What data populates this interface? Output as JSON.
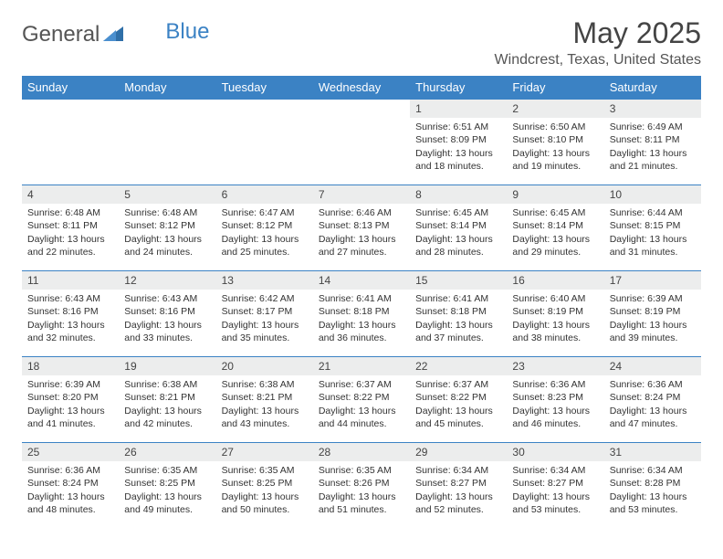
{
  "logo": {
    "text_a": "General",
    "text_b": "Blue"
  },
  "title": "May 2025",
  "location": "Windcrest, Texas, United States",
  "colors": {
    "header_bg": "#3b82c4",
    "header_fg": "#ffffff",
    "daynum_bg": "#eceded",
    "rule": "#3b82c4",
    "text": "#333333"
  },
  "weekday_labels": [
    "Sunday",
    "Monday",
    "Tuesday",
    "Wednesday",
    "Thursday",
    "Friday",
    "Saturday"
  ],
  "first_weekday_index": 4,
  "days": [
    {
      "n": 1,
      "sunrise": "6:51 AM",
      "sunset": "8:09 PM",
      "daylight": "13 hours and 18 minutes."
    },
    {
      "n": 2,
      "sunrise": "6:50 AM",
      "sunset": "8:10 PM",
      "daylight": "13 hours and 19 minutes."
    },
    {
      "n": 3,
      "sunrise": "6:49 AM",
      "sunset": "8:11 PM",
      "daylight": "13 hours and 21 minutes."
    },
    {
      "n": 4,
      "sunrise": "6:48 AM",
      "sunset": "8:11 PM",
      "daylight": "13 hours and 22 minutes."
    },
    {
      "n": 5,
      "sunrise": "6:48 AM",
      "sunset": "8:12 PM",
      "daylight": "13 hours and 24 minutes."
    },
    {
      "n": 6,
      "sunrise": "6:47 AM",
      "sunset": "8:12 PM",
      "daylight": "13 hours and 25 minutes."
    },
    {
      "n": 7,
      "sunrise": "6:46 AM",
      "sunset": "8:13 PM",
      "daylight": "13 hours and 27 minutes."
    },
    {
      "n": 8,
      "sunrise": "6:45 AM",
      "sunset": "8:14 PM",
      "daylight": "13 hours and 28 minutes."
    },
    {
      "n": 9,
      "sunrise": "6:45 AM",
      "sunset": "8:14 PM",
      "daylight": "13 hours and 29 minutes."
    },
    {
      "n": 10,
      "sunrise": "6:44 AM",
      "sunset": "8:15 PM",
      "daylight": "13 hours and 31 minutes."
    },
    {
      "n": 11,
      "sunrise": "6:43 AM",
      "sunset": "8:16 PM",
      "daylight": "13 hours and 32 minutes."
    },
    {
      "n": 12,
      "sunrise": "6:43 AM",
      "sunset": "8:16 PM",
      "daylight": "13 hours and 33 minutes."
    },
    {
      "n": 13,
      "sunrise": "6:42 AM",
      "sunset": "8:17 PM",
      "daylight": "13 hours and 35 minutes."
    },
    {
      "n": 14,
      "sunrise": "6:41 AM",
      "sunset": "8:18 PM",
      "daylight": "13 hours and 36 minutes."
    },
    {
      "n": 15,
      "sunrise": "6:41 AM",
      "sunset": "8:18 PM",
      "daylight": "13 hours and 37 minutes."
    },
    {
      "n": 16,
      "sunrise": "6:40 AM",
      "sunset": "8:19 PM",
      "daylight": "13 hours and 38 minutes."
    },
    {
      "n": 17,
      "sunrise": "6:39 AM",
      "sunset": "8:19 PM",
      "daylight": "13 hours and 39 minutes."
    },
    {
      "n": 18,
      "sunrise": "6:39 AM",
      "sunset": "8:20 PM",
      "daylight": "13 hours and 41 minutes."
    },
    {
      "n": 19,
      "sunrise": "6:38 AM",
      "sunset": "8:21 PM",
      "daylight": "13 hours and 42 minutes."
    },
    {
      "n": 20,
      "sunrise": "6:38 AM",
      "sunset": "8:21 PM",
      "daylight": "13 hours and 43 minutes."
    },
    {
      "n": 21,
      "sunrise": "6:37 AM",
      "sunset": "8:22 PM",
      "daylight": "13 hours and 44 minutes."
    },
    {
      "n": 22,
      "sunrise": "6:37 AM",
      "sunset": "8:22 PM",
      "daylight": "13 hours and 45 minutes."
    },
    {
      "n": 23,
      "sunrise": "6:36 AM",
      "sunset": "8:23 PM",
      "daylight": "13 hours and 46 minutes."
    },
    {
      "n": 24,
      "sunrise": "6:36 AM",
      "sunset": "8:24 PM",
      "daylight": "13 hours and 47 minutes."
    },
    {
      "n": 25,
      "sunrise": "6:36 AM",
      "sunset": "8:24 PM",
      "daylight": "13 hours and 48 minutes."
    },
    {
      "n": 26,
      "sunrise": "6:35 AM",
      "sunset": "8:25 PM",
      "daylight": "13 hours and 49 minutes."
    },
    {
      "n": 27,
      "sunrise": "6:35 AM",
      "sunset": "8:25 PM",
      "daylight": "13 hours and 50 minutes."
    },
    {
      "n": 28,
      "sunrise": "6:35 AM",
      "sunset": "8:26 PM",
      "daylight": "13 hours and 51 minutes."
    },
    {
      "n": 29,
      "sunrise": "6:34 AM",
      "sunset": "8:27 PM",
      "daylight": "13 hours and 52 minutes."
    },
    {
      "n": 30,
      "sunrise": "6:34 AM",
      "sunset": "8:27 PM",
      "daylight": "13 hours and 53 minutes."
    },
    {
      "n": 31,
      "sunrise": "6:34 AM",
      "sunset": "8:28 PM",
      "daylight": "13 hours and 53 minutes."
    }
  ],
  "labels": {
    "sunrise": "Sunrise:",
    "sunset": "Sunset:",
    "daylight": "Daylight:"
  }
}
